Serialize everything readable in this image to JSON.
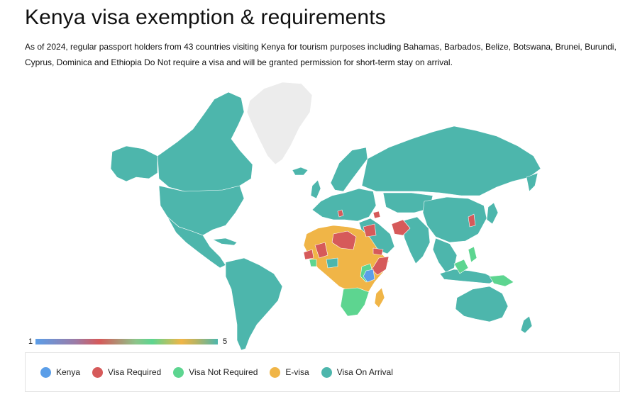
{
  "title": "Kenya visa exemption & requirements",
  "subtitle": "As of 2024, regular passport holders from 43 countries visiting Kenya for tourism purposes including Bahamas, Barbados, Belize, Botswana, Brunei, Burundi, Cyprus, Dominica and Ethiopia Do Not require a visa and will be granted permission for short-term stay on arrival.",
  "scale": {
    "min": "1",
    "max": "5"
  },
  "legend": [
    {
      "label": "Kenya",
      "color": "#5b9ee8",
      "value": 1
    },
    {
      "label": "Visa Required",
      "color": "#d65a5a",
      "value": 2
    },
    {
      "label": "Visa Not Required",
      "color": "#5dd590",
      "value": 3
    },
    {
      "label": "E-visa",
      "color": "#f0b547",
      "value": 4
    },
    {
      "label": "Visa On Arrival",
      "color": "#4db6ac",
      "value": 5
    }
  ],
  "colors": {
    "kenya": "#5b9ee8",
    "visa_required": "#d65a5a",
    "visa_not_required": "#5dd590",
    "e_visa": "#f0b547",
    "visa_on_arrival": "#4db6ac",
    "no_data": "#ececec"
  }
}
